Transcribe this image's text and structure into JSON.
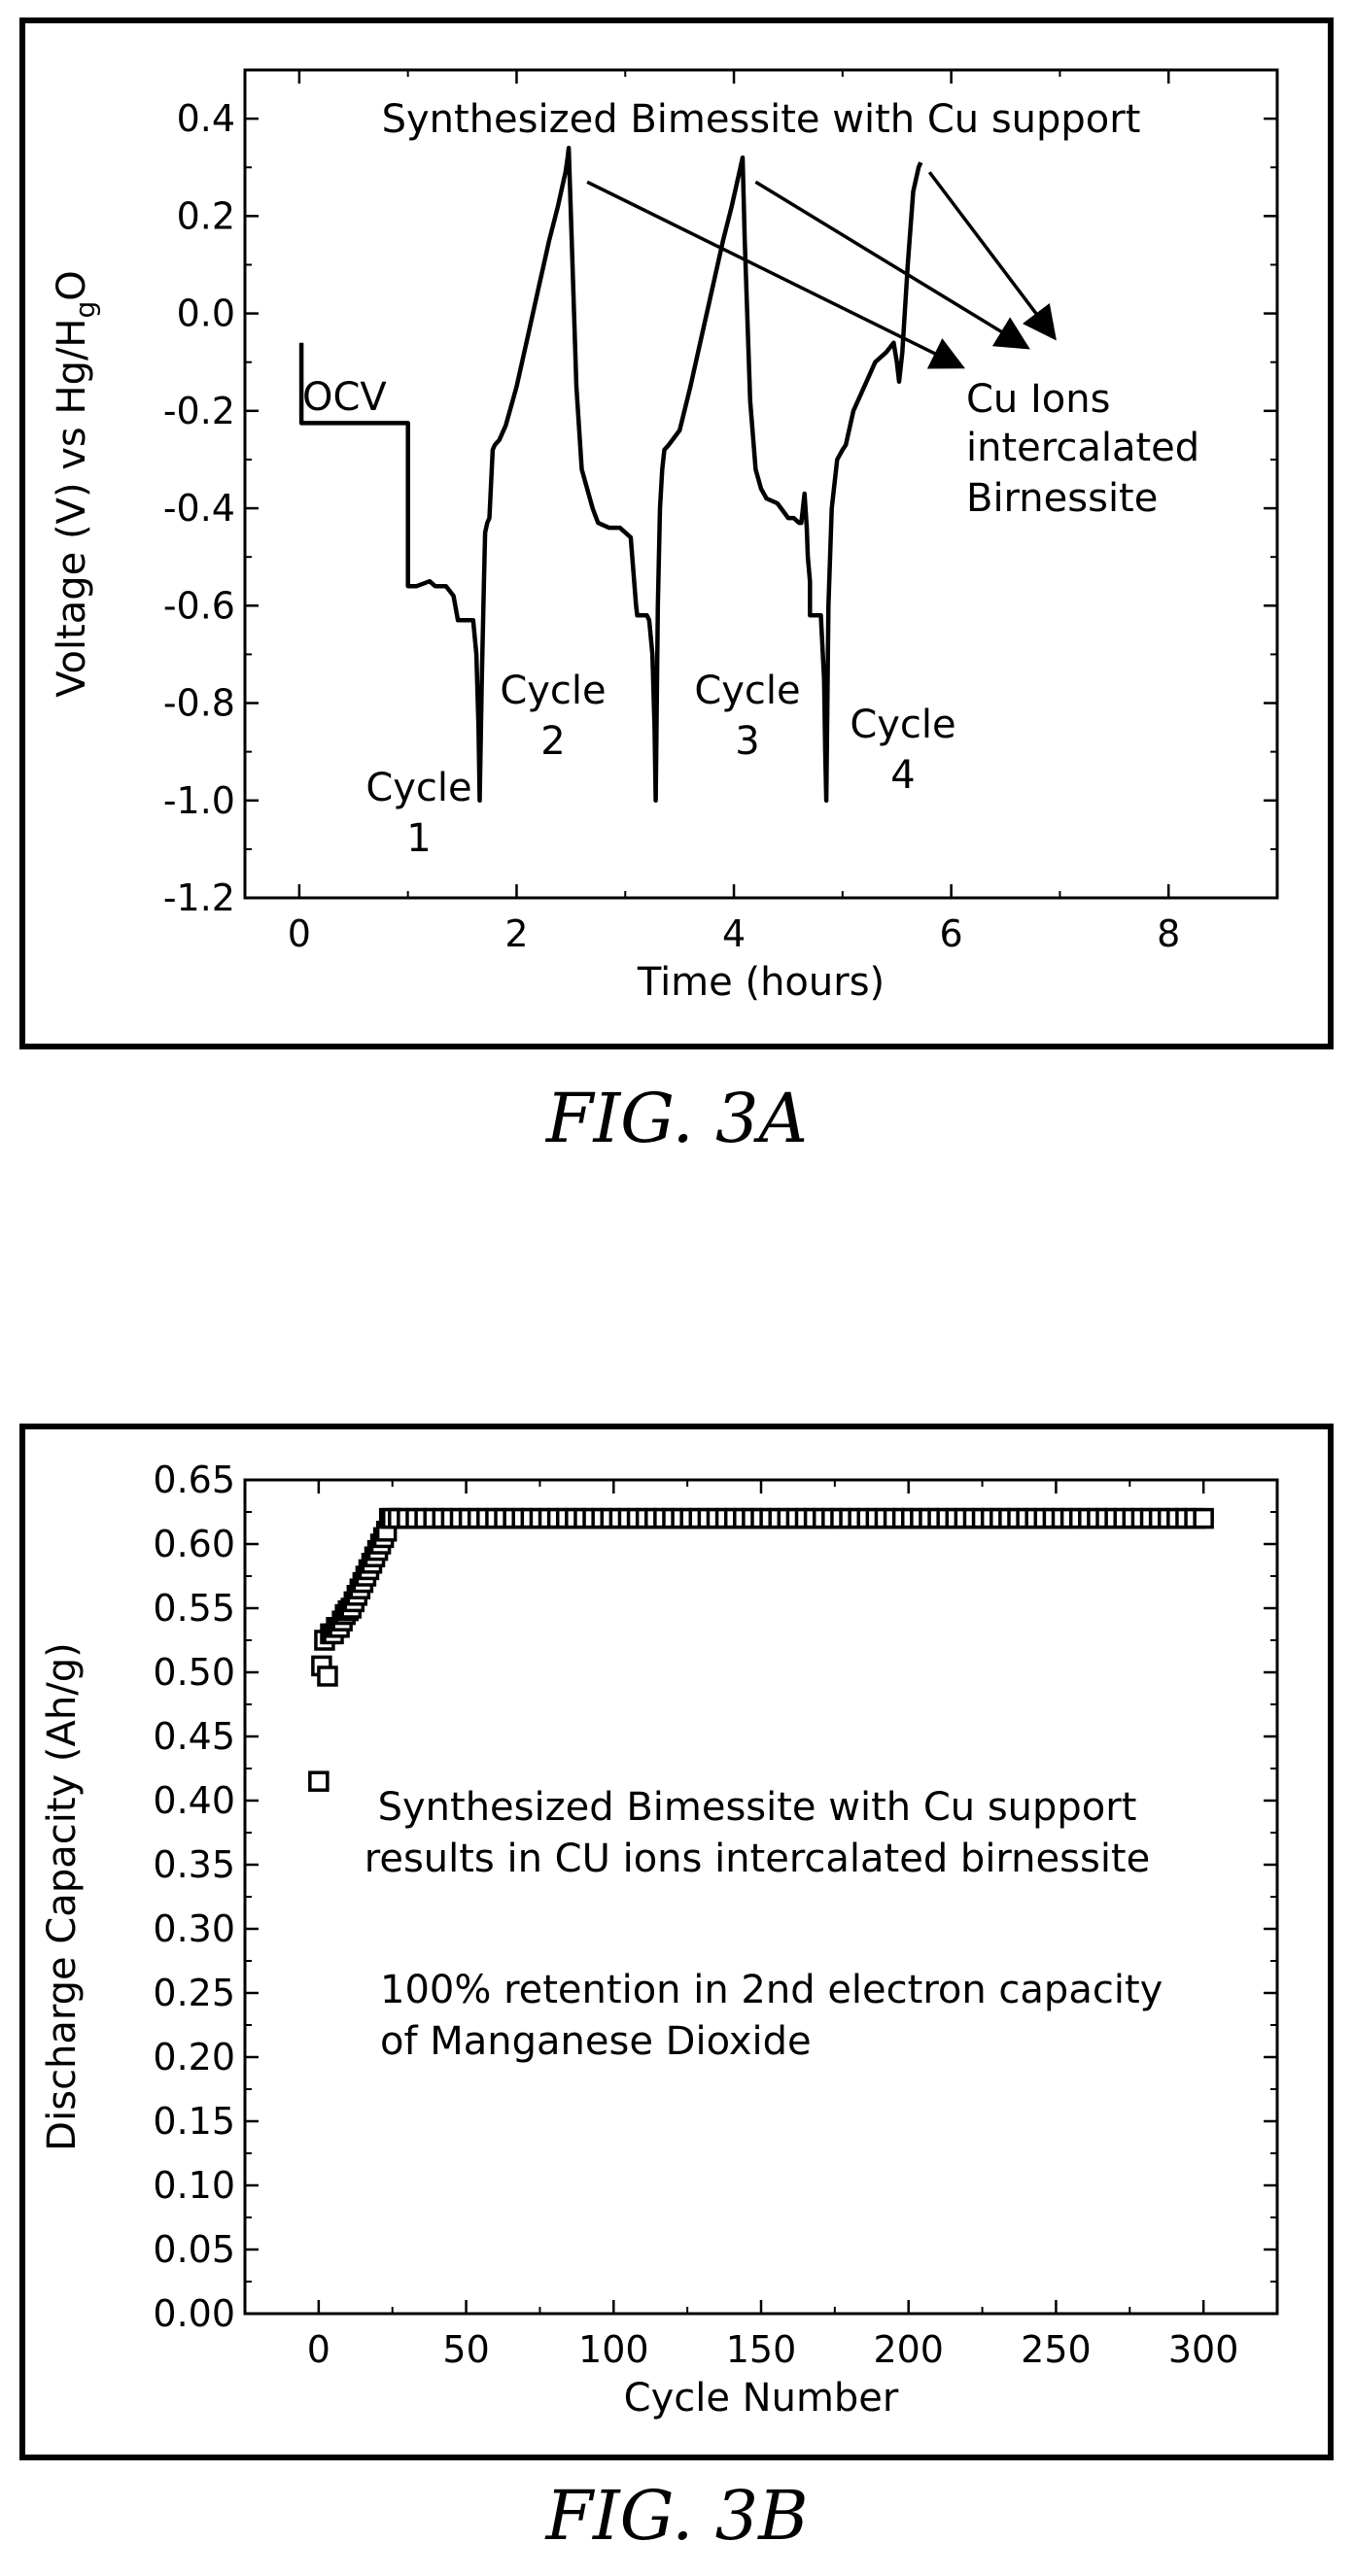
{
  "charts": {
    "a": {
      "type": "line",
      "caption": "FIG. 3A",
      "xlabel": "Time (hours)",
      "ylabel": "Voltage (V) vs Hg/HgO",
      "ylabel_main": "Voltage (V) vs Hg/H",
      "ylabel_sub": "g",
      "ylabel_end": "O",
      "xlim": [
        -0.5,
        9.0
      ],
      "ylim": [
        -1.2,
        0.5
      ],
      "xticks": [
        0,
        2,
        4,
        6,
        8
      ],
      "xtick_labels": [
        "0",
        "2",
        "4",
        "6",
        "8"
      ],
      "yticks": [
        0.4,
        0.2,
        0.0,
        -0.2,
        -0.4,
        -0.6,
        -0.8,
        -1.0,
        -1.2
      ],
      "ytick_labels": [
        "0.4",
        "0.2",
        "0.0",
        "-0.2",
        "-0.4",
        "-0.6",
        "-0.8",
        "-1.0",
        "-1.2"
      ],
      "grid": false,
      "annotations": {
        "top": "Synthesized Bimessite with Cu support",
        "ocv": "OCV",
        "right_line1": "Cu Ions",
        "right_line2": "intercalated",
        "right_line3": "Birnessite",
        "cycle1_a": "Cycle",
        "cycle1_b": "1",
        "cycle2_a": "Cycle",
        "cycle2_b": "2",
        "cycle3_a": "Cycle",
        "cycle3_b": "3",
        "cycle4_a": "Cycle",
        "cycle4_b": "4"
      },
      "arrows": [
        {
          "from": [
            2.65,
            0.27
          ],
          "to": [
            6.1,
            -0.11
          ]
        },
        {
          "from": [
            4.2,
            0.27
          ],
          "to": [
            6.7,
            -0.07
          ]
        },
        {
          "from": [
            5.8,
            0.29
          ],
          "to": [
            6.95,
            -0.05
          ]
        }
      ],
      "series": [
        {
          "x": [
            0.02,
            0.02,
            0.02,
            1.0,
            1.0,
            1.03,
            1.08,
            1.2,
            1.25,
            1.35,
            1.42,
            1.46,
            1.5,
            1.5,
            1.6,
            1.63,
            1.65,
            1.66,
            1.68,
            1.7,
            1.71,
            1.73,
            1.75,
            1.78,
            1.8,
            1.84,
            1.9,
            2.0,
            2.1,
            2.2,
            2.3,
            2.38,
            2.42,
            2.45,
            2.47,
            2.48,
            2.5,
            2.55,
            2.6,
            2.65,
            2.7,
            2.75,
            2.85,
            2.95,
            3.05,
            3.1,
            3.11,
            3.2,
            3.22,
            3.25,
            3.27,
            3.28,
            3.3,
            3.32,
            3.34,
            3.36,
            3.4,
            3.5,
            3.6,
            3.7,
            3.8,
            3.9,
            3.98,
            4.03,
            4.06,
            4.08,
            4.1,
            4.15,
            4.2,
            4.25,
            4.3,
            4.4,
            4.5,
            4.55,
            4.6,
            4.62,
            4.65,
            4.67,
            4.68,
            4.7,
            4.7,
            4.75,
            4.8,
            4.83,
            4.84,
            4.85,
            4.87,
            4.9,
            4.95,
            5.0,
            5.03,
            5.05,
            5.1,
            5.2,
            5.3,
            5.4,
            5.47,
            5.5,
            5.52,
            5.55,
            5.6,
            5.65,
            5.7,
            5.72
          ],
          "y": [
            -0.06,
            -0.22,
            -0.225,
            -0.225,
            -0.56,
            -0.56,
            -0.56,
            -0.55,
            -0.56,
            -0.56,
            -0.58,
            -0.63,
            -0.63,
            -0.63,
            -0.63,
            -0.7,
            -0.85,
            -1.0,
            -0.75,
            -0.55,
            -0.45,
            -0.43,
            -0.42,
            -0.28,
            -0.27,
            -0.26,
            -0.23,
            -0.15,
            -0.05,
            0.05,
            0.15,
            0.22,
            0.26,
            0.29,
            0.32,
            0.34,
            0.2,
            -0.15,
            -0.32,
            -0.36,
            -0.4,
            -0.43,
            -0.44,
            -0.44,
            -0.46,
            -0.6,
            -0.62,
            -0.62,
            -0.63,
            -0.7,
            -0.85,
            -1.0,
            -0.6,
            -0.4,
            -0.32,
            -0.28,
            -0.27,
            -0.24,
            -0.15,
            -0.05,
            0.05,
            0.15,
            0.22,
            0.27,
            0.3,
            0.32,
            0.15,
            -0.18,
            -0.32,
            -0.36,
            -0.38,
            -0.39,
            -0.42,
            -0.42,
            -0.43,
            -0.43,
            -0.37,
            -0.44,
            -0.5,
            -0.55,
            -0.62,
            -0.62,
            -0.62,
            -0.75,
            -0.9,
            -1.0,
            -0.6,
            -0.4,
            -0.3,
            -0.28,
            -0.27,
            -0.25,
            -0.2,
            -0.15,
            -0.1,
            -0.08,
            -0.06,
            -0.1,
            -0.14,
            -0.08,
            0.1,
            0.25,
            0.3,
            0.31
          ]
        }
      ]
    },
    "b": {
      "type": "scatter",
      "caption": "FIG. 3B",
      "xlabel": "Cycle Number",
      "ylabel": "Discharge Capacity (Ah/g)",
      "xlim": [
        -25,
        325
      ],
      "ylim": [
        0.0,
        0.65
      ],
      "xticks": [
        0,
        50,
        100,
        150,
        200,
        250,
        300
      ],
      "xtick_labels": [
        "0",
        "50",
        "100",
        "150",
        "200",
        "250",
        "300"
      ],
      "yticks": [
        0.65,
        0.6,
        0.55,
        0.5,
        0.45,
        0.4,
        0.35,
        0.3,
        0.25,
        0.2,
        0.15,
        0.1,
        0.05,
        0.0
      ],
      "ytick_labels": [
        "0.65",
        "0.60",
        "0.55",
        "0.50",
        "0.45",
        "0.40",
        "0.35",
        "0.30",
        "0.25",
        "0.20",
        "0.15",
        "0.10",
        "0.05",
        "0.00"
      ],
      "grid": false,
      "annotations": {
        "line1": "Synthesized Bimessite with Cu support",
        "line2": "results in CU ions intercalated birnessite",
        "line3": "100% retention in 2nd electron capacity",
        "line4": "of Manganese Dioxide"
      },
      "series": [
        {
          "x": [
            0,
            1,
            2,
            3,
            4,
            5,
            6,
            7,
            8,
            9,
            10,
            11,
            12,
            13,
            14,
            15,
            16,
            17,
            18,
            19,
            20,
            21,
            22,
            23,
            24,
            25,
            27,
            30,
            33,
            36,
            39,
            42,
            45,
            48,
            51,
            54,
            57,
            60,
            63,
            66,
            69,
            72,
            75,
            78,
            81,
            84,
            87,
            90,
            93,
            96,
            99,
            102,
            105,
            108,
            111,
            114,
            117,
            120,
            123,
            126,
            129,
            132,
            135,
            138,
            141,
            144,
            147,
            150,
            153,
            156,
            159,
            162,
            165,
            168,
            171,
            174,
            177,
            180,
            183,
            186,
            189,
            192,
            195,
            198,
            201,
            204,
            207,
            210,
            213,
            216,
            219,
            222,
            225,
            228,
            231,
            234,
            237,
            240,
            243,
            246,
            249,
            252,
            255,
            258,
            261,
            264,
            267,
            270,
            273,
            276,
            279,
            282,
            285,
            288,
            291,
            294,
            297,
            300
          ],
          "y": [
            0.415,
            0.505,
            0.525,
            0.497,
            0.53,
            0.53,
            0.535,
            0.535,
            0.54,
            0.545,
            0.548,
            0.55,
            0.555,
            0.56,
            0.565,
            0.57,
            0.575,
            0.58,
            0.585,
            0.59,
            0.595,
            0.6,
            0.605,
            0.61,
            0.62,
            0.62,
            0.62,
            0.62,
            0.62,
            0.62,
            0.62,
            0.62,
            0.62,
            0.62,
            0.62,
            0.62,
            0.62,
            0.62,
            0.62,
            0.62,
            0.62,
            0.62,
            0.62,
            0.62,
            0.62,
            0.62,
            0.62,
            0.62,
            0.62,
            0.62,
            0.62,
            0.62,
            0.62,
            0.62,
            0.62,
            0.62,
            0.62,
            0.62,
            0.62,
            0.62,
            0.62,
            0.62,
            0.62,
            0.62,
            0.62,
            0.62,
            0.62,
            0.62,
            0.62,
            0.62,
            0.62,
            0.62,
            0.62,
            0.62,
            0.62,
            0.62,
            0.62,
            0.62,
            0.62,
            0.62,
            0.62,
            0.62,
            0.62,
            0.62,
            0.62,
            0.62,
            0.62,
            0.62,
            0.62,
            0.62,
            0.62,
            0.62,
            0.62,
            0.62,
            0.62,
            0.62,
            0.62,
            0.62,
            0.62,
            0.62,
            0.62,
            0.62,
            0.62,
            0.62,
            0.62,
            0.62,
            0.62,
            0.62,
            0.62,
            0.62,
            0.62,
            0.62,
            0.62,
            0.62,
            0.62,
            0.62,
            0.62,
            0.62
          ]
        }
      ]
    }
  }
}
